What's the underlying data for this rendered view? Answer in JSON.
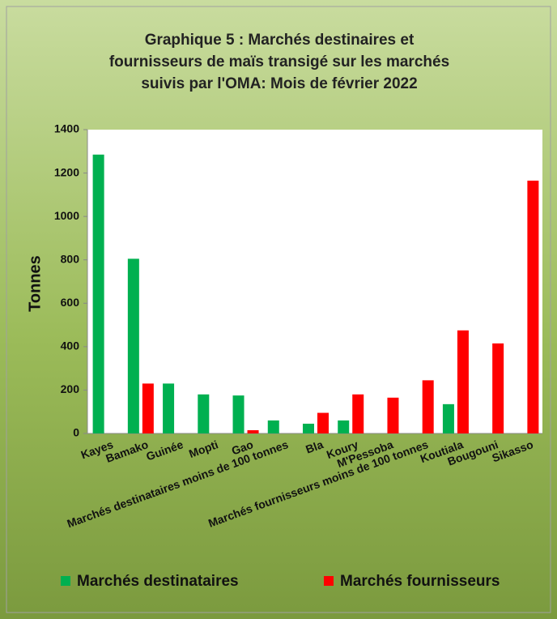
{
  "chart_data": {
    "type": "bar",
    "title": "Graphique 5 : Marchés destinaires et fournisseurs de maïs transigé sur les marchés suivis par l'OMA: Mois de février 2022",
    "y_label": "Tonnes",
    "categories": [
      "Kayes",
      "Bamako",
      "Guinée",
      "Mopti",
      "Gao",
      "Marchés destinataires moins de 100 tonnes",
      "Bla",
      "Koury",
      "M'Pessoba",
      "Marchés fournisseurs moins de 100 tonnes",
      "Koutiala",
      "Bougouni",
      "Sikasso"
    ],
    "series": [
      {
        "name": "Marchés destinataires",
        "color": "#00b050",
        "values": [
          1285,
          805,
          230,
          180,
          175,
          60,
          45,
          60,
          null,
          null,
          135,
          null,
          null
        ]
      },
      {
        "name": "Marchés fournisseurs",
        "color": "#ff0000",
        "values": [
          null,
          230,
          null,
          null,
          15,
          null,
          95,
          180,
          165,
          245,
          475,
          415,
          1165
        ]
      }
    ],
    "ylim": [
      0,
      1400
    ],
    "yticks": [
      0,
      200,
      400,
      600,
      800,
      1000,
      1200,
      1400
    ],
    "grid": false,
    "legend": "bottom"
  }
}
